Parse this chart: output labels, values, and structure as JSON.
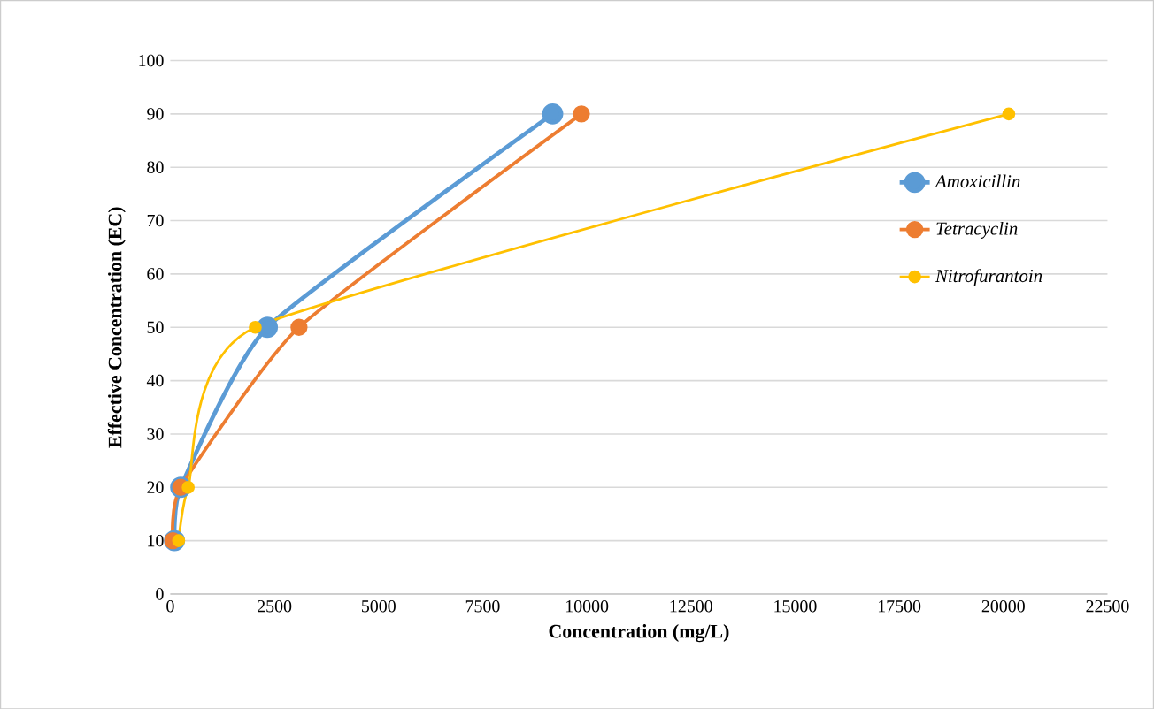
{
  "chart_data": {
    "type": "line",
    "xlabel": "Concentration (mg/L)",
    "ylabel": "Effective Concentration (EC)",
    "series": [
      {
        "name": "*Amoxicillin*",
        "color": "#5b9bd5",
        "x": [
          100,
          250,
          2330,
          9180
        ],
        "values": [
          10,
          20,
          50,
          90
        ]
      },
      {
        "name": "*Tetracyclin*",
        "color": "#ed7d31",
        "x": [
          60,
          250,
          3090,
          9870
        ],
        "values": [
          10,
          20,
          50,
          90
        ]
      },
      {
        "name": "*Nitrofurantoin*",
        "color": "#ffc000",
        "x": [
          200,
          430,
          2040,
          20130
        ],
        "values": [
          10,
          20,
          50,
          90
        ]
      }
    ],
    "xlim": [
      0,
      22500
    ],
    "xticks": [
      0,
      2500,
      5000,
      7500,
      10000,
      12500,
      15000,
      17500,
      20000,
      22500
    ],
    "ylim": [
      0,
      100
    ],
    "yticks": [
      0,
      10,
      20,
      30,
      40,
      50,
      60,
      70,
      80,
      90,
      100
    ],
    "grid": "y",
    "legend": "right",
    "marker": "circle",
    "line_style": "solid"
  }
}
